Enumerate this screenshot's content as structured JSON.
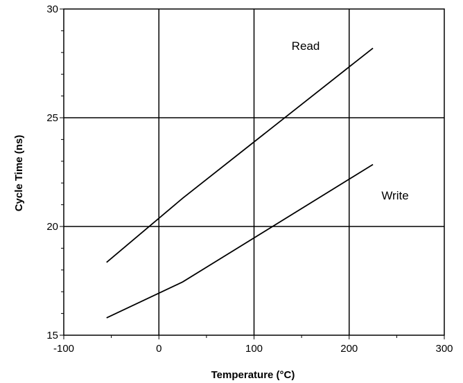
{
  "chart_data": {
    "type": "line",
    "title": "",
    "xlabel": "Temperature  (°C)",
    "ylabel": "Cycle Time  (ns)",
    "xlim": [
      -100,
      300
    ],
    "ylim": [
      15,
      30
    ],
    "x_ticks": [
      -100,
      0,
      100,
      200,
      300
    ],
    "y_ticks": [
      15,
      20,
      25,
      30
    ],
    "x_tick_labels": [
      "-100",
      "0",
      "100",
      "200",
      "300"
    ],
    "y_tick_labels": [
      "15",
      "20",
      "25",
      "30"
    ],
    "grid": true,
    "legend": "none",
    "series": [
      {
        "name": "Read",
        "x": [
          -55,
          25,
          225
        ],
        "y": [
          18.35,
          21.3,
          28.2
        ]
      },
      {
        "name": "Write",
        "x": [
          -55,
          25,
          225
        ],
        "y": [
          15.8,
          17.45,
          22.85
        ]
      }
    ]
  }
}
